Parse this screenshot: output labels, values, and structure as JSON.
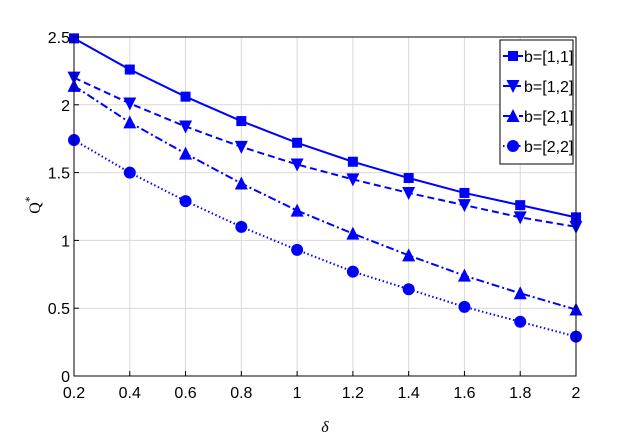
{
  "chart_data": {
    "type": "line",
    "xlabel": "δ",
    "ylabel": "Q",
    "ylabel_sup": "*",
    "xlim": [
      0.2,
      2
    ],
    "ylim": [
      0,
      2.5
    ],
    "xticks": [
      "0.2",
      "0.4",
      "0.6",
      "0.8",
      "1",
      "1.2",
      "1.4",
      "1.6",
      "1.8",
      "2"
    ],
    "yticks": [
      "0",
      "0.5",
      "1",
      "1.5",
      "2",
      "2.5"
    ],
    "grid": true,
    "legend_position": "top-right",
    "line_color": "#0000ff",
    "x": [
      0.2,
      0.4,
      0.6,
      0.8,
      1.0,
      1.2,
      1.4,
      1.6,
      1.8,
      2.0
    ],
    "series": [
      {
        "name": "b=[1,1]",
        "marker": "square",
        "dash": "solid",
        "values": [
          2.49,
          2.26,
          2.06,
          1.88,
          1.72,
          1.58,
          1.46,
          1.35,
          1.26,
          1.17
        ]
      },
      {
        "name": "b=[1,2]",
        "marker": "triangle-down",
        "dash": "dashed",
        "values": [
          2.2,
          2.01,
          1.84,
          1.69,
          1.56,
          1.45,
          1.35,
          1.26,
          1.17,
          1.1
        ]
      },
      {
        "name": "b=[2,1]",
        "marker": "triangle-up",
        "dash": "dashdot",
        "values": [
          2.14,
          1.87,
          1.64,
          1.42,
          1.22,
          1.05,
          0.89,
          0.74,
          0.61,
          0.49
        ]
      },
      {
        "name": "b=[2,2]",
        "marker": "circle",
        "dash": "dotted",
        "values": [
          1.74,
          1.5,
          1.29,
          1.1,
          0.93,
          0.77,
          0.64,
          0.51,
          0.4,
          0.29
        ]
      }
    ]
  }
}
